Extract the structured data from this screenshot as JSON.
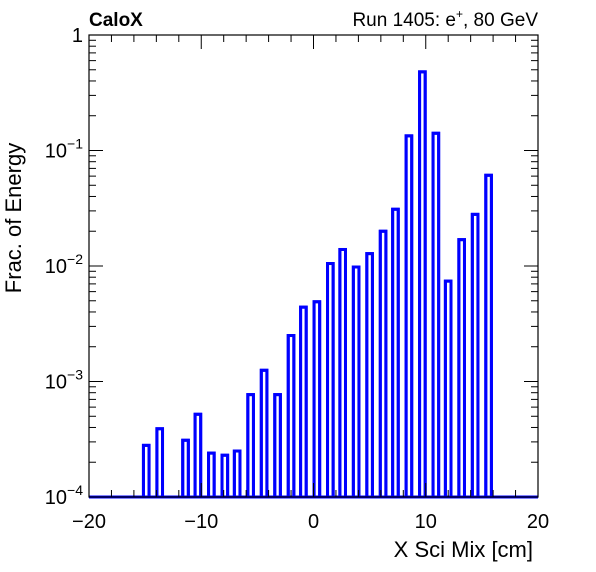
{
  "header": {
    "experiment": "CaloX",
    "run_info": "Run 1405: e",
    "run_charge": "+",
    "run_energy": ", 80 GeV"
  },
  "chart_data": {
    "type": "bar",
    "histogram_style": "step-outline",
    "xlabel": "X Sci Mix [cm]",
    "ylabel": "Frac. of Energy",
    "xlim": [
      -20,
      20
    ],
    "ylim": [
      0.0001,
      1
    ],
    "y_scale": "log",
    "grid": false,
    "line_color": "#0000ff",
    "x_ticks": [
      -20,
      -10,
      0,
      10,
      20
    ],
    "y_ticks": [
      {
        "value": 1,
        "base": "1",
        "exp": ""
      },
      {
        "value": 0.1,
        "base": "10",
        "exp": "−1"
      },
      {
        "value": 0.01,
        "base": "10",
        "exp": "−2"
      },
      {
        "value": 0.001,
        "base": "10",
        "exp": "−3"
      },
      {
        "value": 0.0001,
        "base": "10",
        "exp": "−4"
      }
    ],
    "bar_width": 0.5,
    "bars": [
      {
        "x": -14.9,
        "y": 0.00028
      },
      {
        "x": -13.7,
        "y": 0.00039
      },
      {
        "x": -11.4,
        "y": 0.00031
      },
      {
        "x": -10.3,
        "y": 0.00052
      },
      {
        "x": -9.1,
        "y": 0.00024
      },
      {
        "x": -7.9,
        "y": 0.00023
      },
      {
        "x": -6.8,
        "y": 0.00025
      },
      {
        "x": -5.6,
        "y": 0.00077
      },
      {
        "x": -4.4,
        "y": 0.00125
      },
      {
        "x": -3.2,
        "y": 0.00077
      },
      {
        "x": -2.0,
        "y": 0.0025
      },
      {
        "x": -0.9,
        "y": 0.0044
      },
      {
        "x": 0.3,
        "y": 0.0049
      },
      {
        "x": 1.5,
        "y": 0.0105
      },
      {
        "x": 2.6,
        "y": 0.0139
      },
      {
        "x": 3.8,
        "y": 0.0098
      },
      {
        "x": 5.0,
        "y": 0.0128
      },
      {
        "x": 6.2,
        "y": 0.02
      },
      {
        "x": 7.3,
        "y": 0.031
      },
      {
        "x": 8.5,
        "y": 0.134
      },
      {
        "x": 9.7,
        "y": 0.48
      },
      {
        "x": 10.9,
        "y": 0.141
      },
      {
        "x": 12.0,
        "y": 0.0074
      },
      {
        "x": 13.2,
        "y": 0.0169
      },
      {
        "x": 14.4,
        "y": 0.028
      },
      {
        "x": 15.6,
        "y": 0.061
      }
    ]
  }
}
